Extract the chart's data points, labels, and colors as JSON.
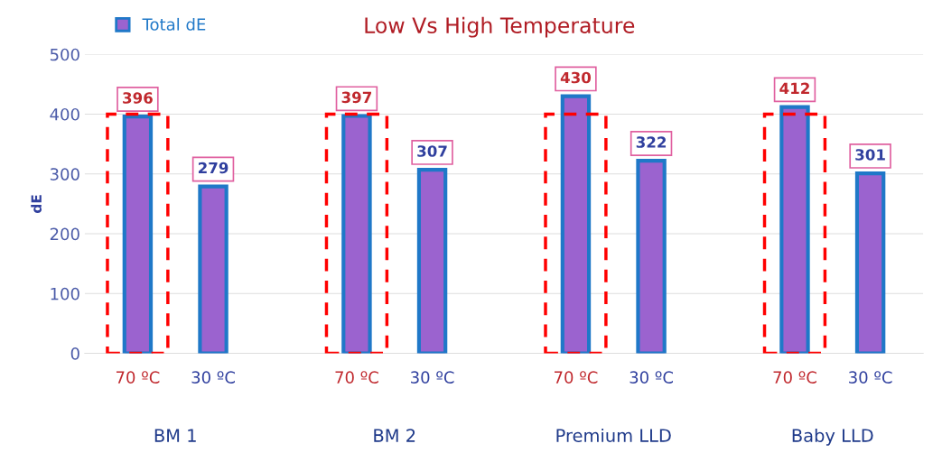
{
  "chart_data": {
    "type": "bar",
    "title": "Low Vs High Temperature",
    "ylabel": "dE",
    "categories": [
      "70 ºC",
      "30 ºC",
      "70 ºC",
      "30 ºC",
      "70 ºC",
      "30 ºC",
      "70 ºC",
      "30 ºC"
    ],
    "series": [
      {
        "name": "Total dE",
        "color": "#9b63cf",
        "values": [
          396,
          279,
          397,
          307,
          430,
          322,
          412,
          301
        ],
        "value_labels": [
          "396",
          "279",
          "397",
          "307",
          "430",
          "322",
          "412",
          "301"
        ]
      },
      {
        "color": "#ff0000",
        "line_style": "dashed",
        "values": [
          400,
          null,
          400,
          null,
          400,
          null,
          400,
          null
        ]
      }
    ],
    "annotations": [
      "BM 1",
      "BM 2",
      "Premium LLD",
      "Baby LLD"
    ],
    "ylim": [
      0,
      500
    ],
    "yticks": [
      0,
      100,
      200,
      300,
      400,
      500
    ],
    "grid": "y",
    "legend": "top left"
  }
}
